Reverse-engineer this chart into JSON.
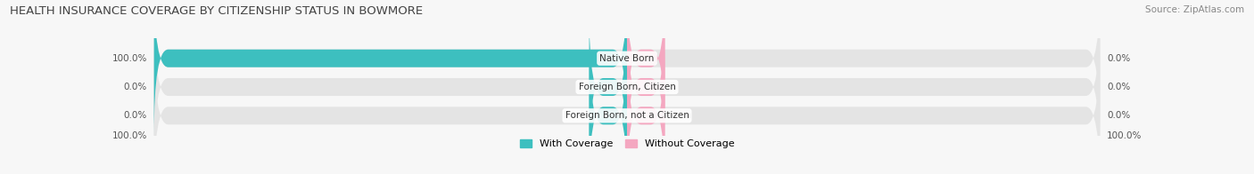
{
  "title": "HEALTH INSURANCE COVERAGE BY CITIZENSHIP STATUS IN BOWMORE",
  "source": "Source: ZipAtlas.com",
  "categories": [
    "Native Born",
    "Foreign Born, Citizen",
    "Foreign Born, not a Citizen"
  ],
  "with_coverage": [
    100.0,
    0.0,
    0.0
  ],
  "without_coverage": [
    0.0,
    0.0,
    0.0
  ],
  "color_with": "#3dbfbf",
  "color_without": "#f4a7c0",
  "color_bg_bar": "#e4e4e4",
  "color_bg_figure": "#f7f7f7",
  "bar_height": 0.62,
  "bar_min_visual": 8.0,
  "title_fontsize": 9.5,
  "label_fontsize": 7.5,
  "legend_fontsize": 8,
  "source_fontsize": 7.5
}
